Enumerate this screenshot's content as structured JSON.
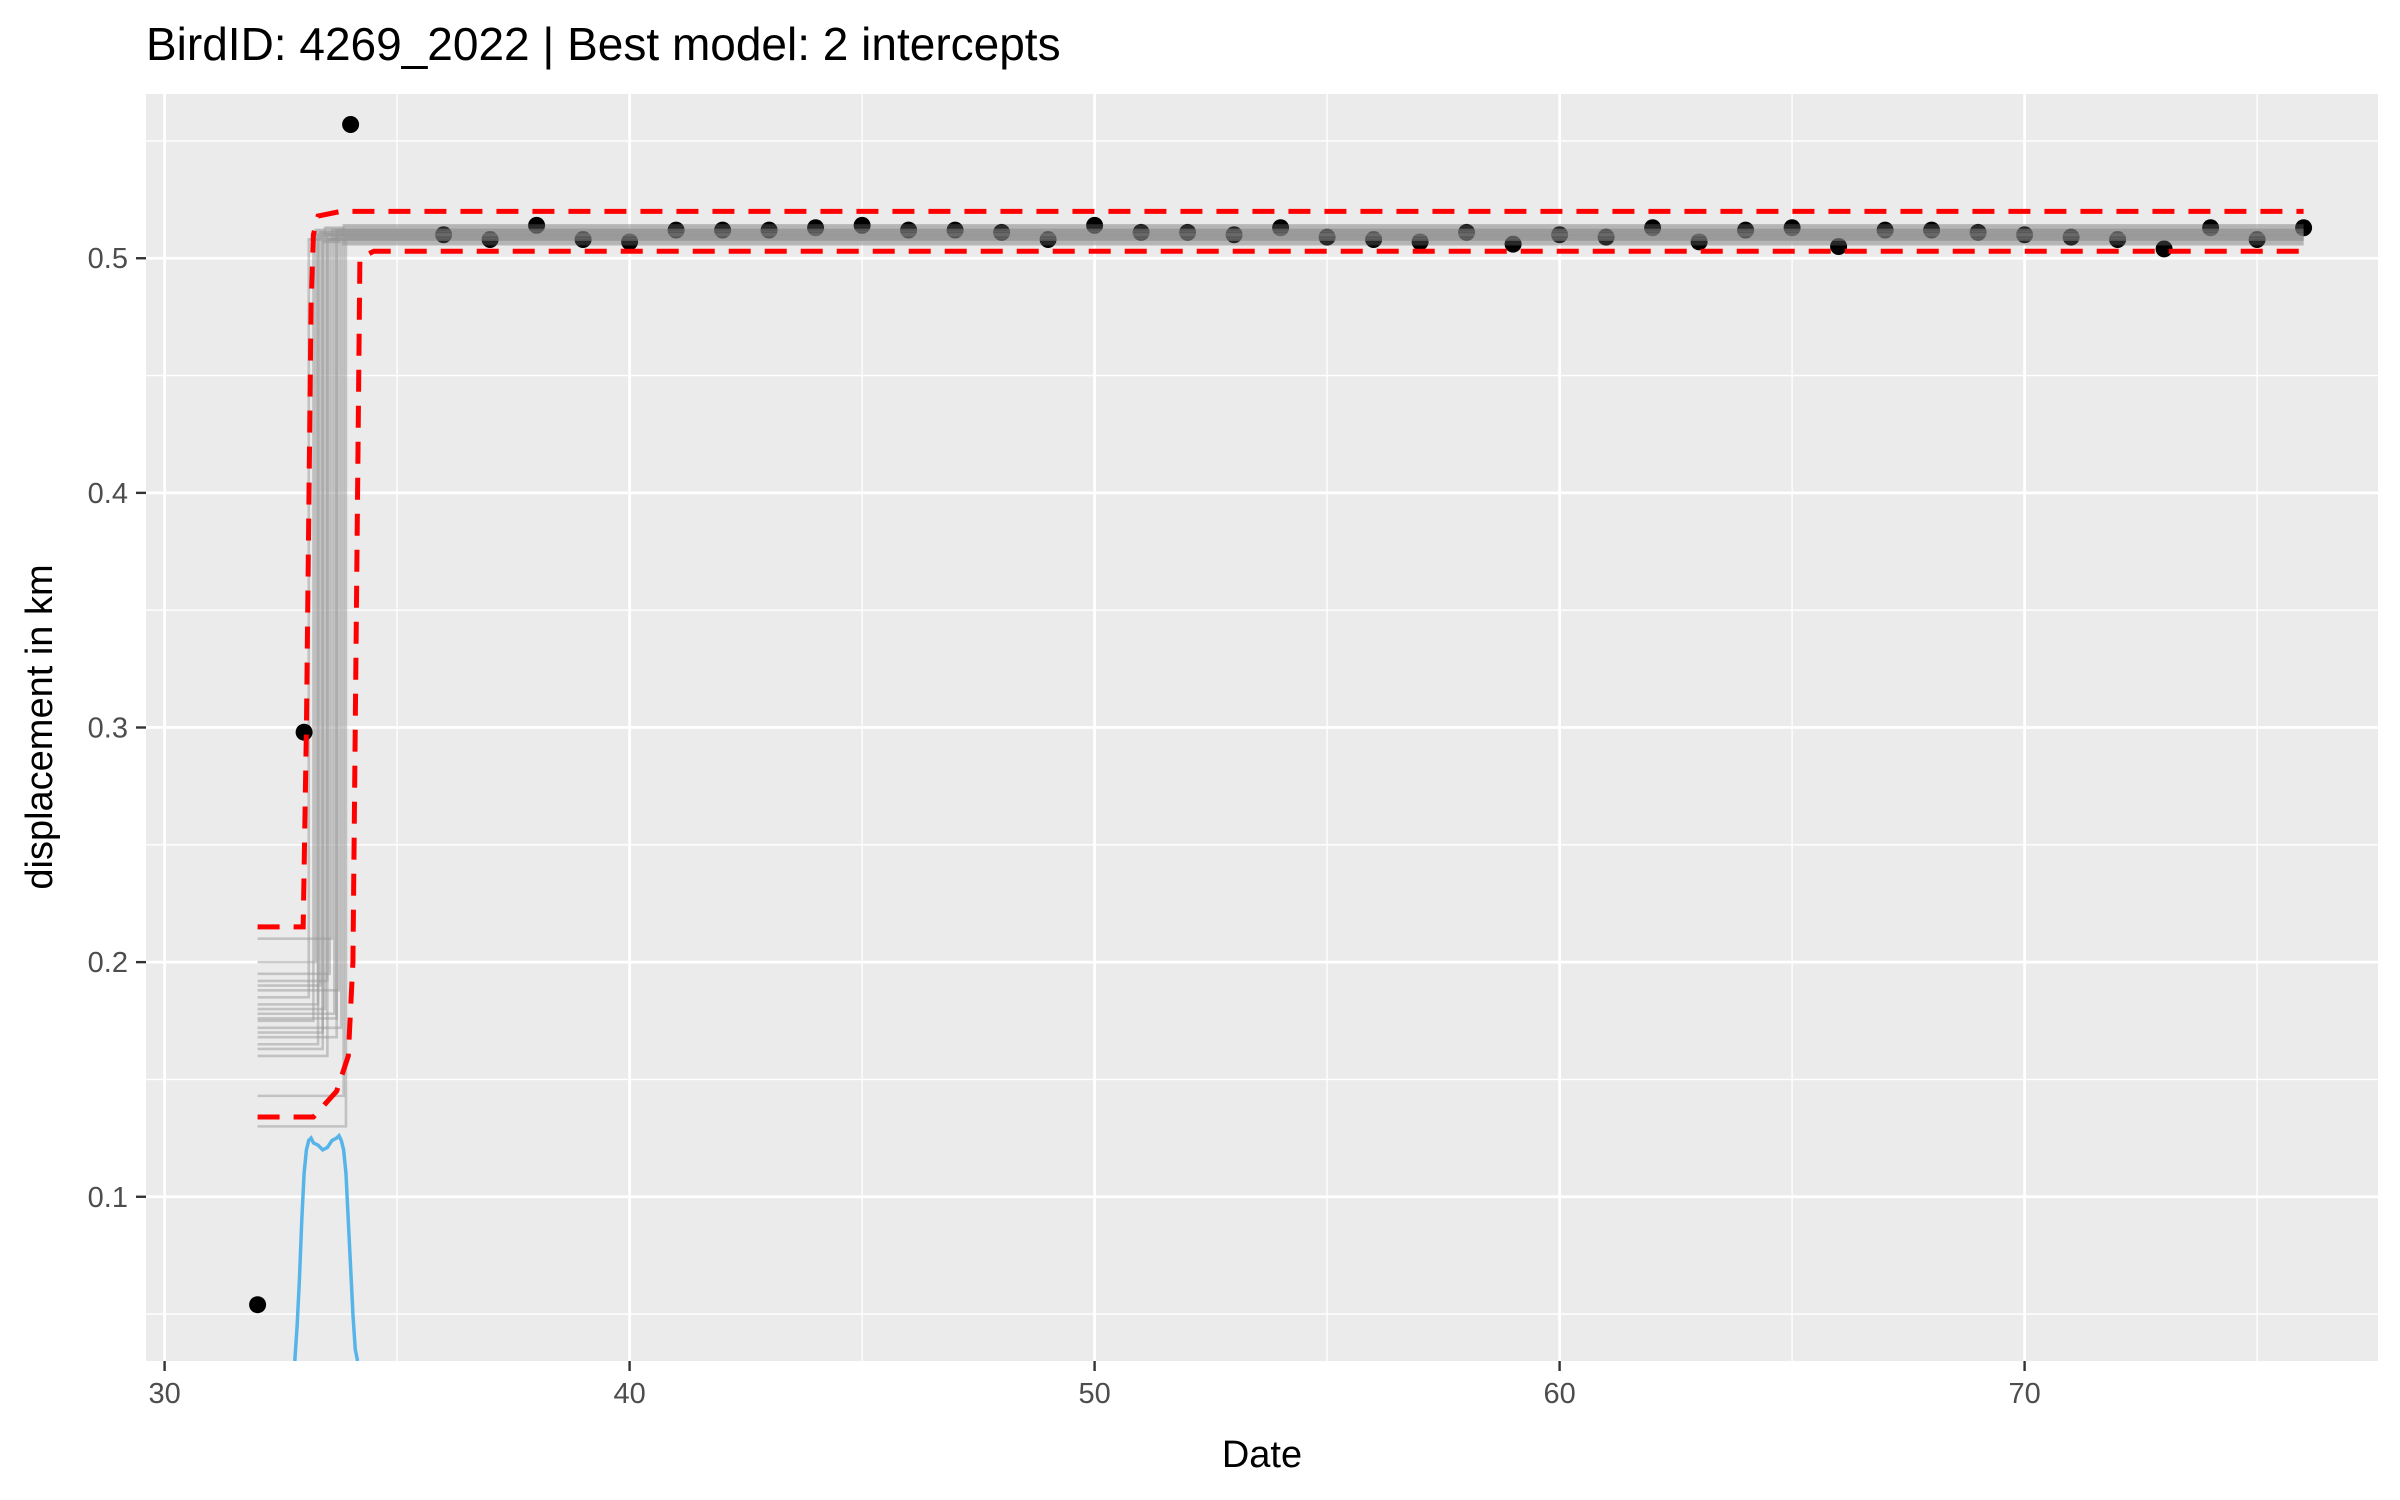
{
  "chart_data": {
    "type": "scatter",
    "title": "BirdID: 4269_2022 | Best model: 2 intercepts",
    "xlabel": "Date",
    "ylabel": "displacement in km",
    "xlim": [
      29.6,
      77.6
    ],
    "ylim": [
      0.03,
      0.57
    ],
    "x_ticks": [
      30,
      40,
      50,
      60,
      70
    ],
    "y_ticks": [
      0.1,
      0.2,
      0.3,
      0.4,
      0.5
    ],
    "x_tick_labels": [
      "30",
      "40",
      "50",
      "60",
      "70"
    ],
    "y_tick_labels": [
      "0.1",
      "0.2",
      "0.3",
      "0.4",
      "0.5"
    ],
    "grid": true,
    "colors": {
      "panel": "#ebebeb",
      "grid": "#ffffff",
      "points": "#000000",
      "posterior_lines": "#999999",
      "credible_interval": "#ff0000",
      "changepoint_density": "#56b4e9"
    },
    "points": {
      "x": [
        32,
        33,
        34,
        36,
        37,
        38,
        39,
        40,
        41,
        42,
        43,
        44,
        45,
        46,
        47,
        48,
        49,
        50,
        51,
        52,
        53,
        54,
        55,
        56,
        57,
        58,
        59,
        60,
        61,
        62,
        63,
        64,
        65,
        66,
        67,
        68,
        69,
        70,
        71,
        72,
        73,
        74,
        75,
        76
      ],
      "y": [
        0.054,
        0.298,
        0.557,
        0.51,
        0.508,
        0.514,
        0.508,
        0.507,
        0.512,
        0.512,
        0.512,
        0.513,
        0.514,
        0.512,
        0.512,
        0.511,
        0.508,
        0.514,
        0.511,
        0.511,
        0.51,
        0.513,
        0.509,
        0.508,
        0.507,
        0.511,
        0.506,
        0.51,
        0.509,
        0.513,
        0.507,
        0.512,
        0.513,
        0.505,
        0.512,
        0.512,
        0.511,
        0.51,
        0.509,
        0.508,
        0.504,
        0.513,
        0.508,
        0.513
      ]
    },
    "posterior_fits": {
      "x_start": 32,
      "x_end": 76,
      "change_x": [
        33.1,
        33.2,
        33.25,
        33.3,
        33.35,
        33.4,
        33.45,
        33.5,
        33.55,
        33.6,
        33.65,
        33.7,
        33.75,
        33.8,
        33.85,
        33.9,
        33.3,
        33.5,
        33.7,
        33.4
      ],
      "segment1_y": [
        0.185,
        0.175,
        0.2,
        0.165,
        0.19,
        0.17,
        0.18,
        0.16,
        0.195,
        0.21,
        0.178,
        0.168,
        0.188,
        0.172,
        0.143,
        0.13,
        0.182,
        0.192,
        0.176,
        0.163
      ],
      "segment2_y": [
        0.508,
        0.51,
        0.512,
        0.509,
        0.511,
        0.507,
        0.513,
        0.51,
        0.508,
        0.512,
        0.509,
        0.511,
        0.51,
        0.506,
        0.514,
        0.509,
        0.511,
        0.508,
        0.512,
        0.51
      ]
    },
    "credible_interval": {
      "upper": [
        [
          32,
          0.215
        ],
        [
          32.98,
          0.215
        ],
        [
          33.05,
          0.3
        ],
        [
          33.15,
          0.48
        ],
        [
          33.2,
          0.51
        ],
        [
          33.3,
          0.518
        ],
        [
          33.8,
          0.52
        ],
        [
          76,
          0.52
        ]
      ],
      "lower": [
        [
          32,
          0.134
        ],
        [
          33.2,
          0.134
        ],
        [
          33.7,
          0.145
        ],
        [
          33.95,
          0.16
        ],
        [
          34.05,
          0.2
        ],
        [
          34.1,
          0.3
        ],
        [
          34.2,
          0.5
        ],
        [
          34.5,
          0.503
        ],
        [
          76,
          0.503
        ]
      ]
    },
    "changepoint_density": {
      "x": [
        32.8,
        32.85,
        32.9,
        32.95,
        33.0,
        33.05,
        33.1,
        33.15,
        33.2,
        33.3,
        33.4,
        33.5,
        33.6,
        33.7,
        33.75,
        33.8,
        33.85,
        33.9,
        33.95,
        34.0,
        34.05,
        34.1,
        34.15
      ],
      "y": [
        0.03,
        0.045,
        0.065,
        0.09,
        0.11,
        0.12,
        0.124,
        0.125,
        0.123,
        0.122,
        0.12,
        0.121,
        0.124,
        0.125,
        0.126,
        0.124,
        0.12,
        0.11,
        0.09,
        0.07,
        0.05,
        0.035,
        0.03
      ]
    }
  }
}
